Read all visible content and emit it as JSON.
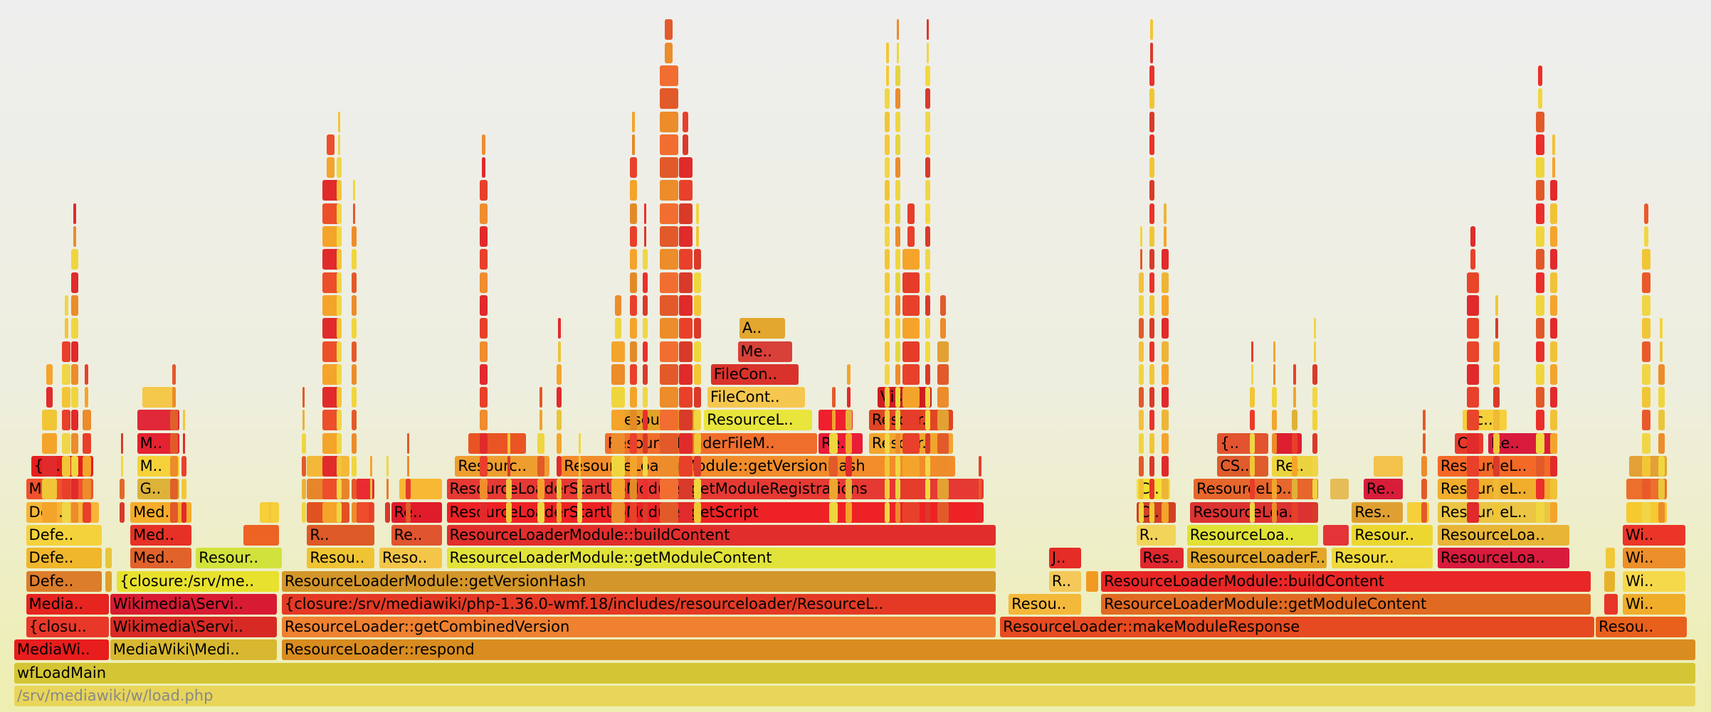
{
  "chart_data": {
    "type": "flamegraph",
    "title": "",
    "frames": [
      {
        "depth": 0,
        "x0": 0,
        "x1": 100,
        "label": "/srv/mediawiki/w/load.php",
        "color": "#e8d55a"
      },
      {
        "depth": 1,
        "x0": 0,
        "x1": 100,
        "label": "wfLoadMain",
        "color": "#d4c534"
      },
      {
        "depth": 2,
        "x0": 0,
        "x1": 5.7,
        "label": "MediaWi..",
        "color": "#e81d1d"
      },
      {
        "depth": 2,
        "x0": 5.7,
        "x1": 15.7,
        "label": "MediaWiki\\Medi..",
        "color": "#d8b830"
      },
      {
        "depth": 2,
        "x0": 15.9,
        "x1": 100,
        "label": "ResourceLoader::respond",
        "color": "#d98c1f"
      },
      {
        "depth": 3,
        "x0": 0.7,
        "x1": 5.7,
        "label": "{closu..",
        "color": "#e8382a"
      },
      {
        "depth": 3,
        "x0": 5.7,
        "x1": 15.7,
        "label": "Wikimedia\\Servi..",
        "color": "#d82a24"
      },
      {
        "depth": 3,
        "x0": 15.9,
        "x1": 58.4,
        "label": "ResourceLoader::getCombinedVersion",
        "color": "#ef8130"
      },
      {
        "depth": 3,
        "x0": 58.6,
        "x1": 94.0,
        "label": "ResourceLoader::makeModuleResponse",
        "color": "#e64a20"
      },
      {
        "depth": 3,
        "x0": 94.0,
        "x1": 99.5,
        "label": "Resou..",
        "color": "#e8601c"
      },
      {
        "depth": 4,
        "x0": 0.7,
        "x1": 5.7,
        "label": "Media..",
        "color": "#e62420"
      },
      {
        "depth": 4,
        "x0": 5.7,
        "x1": 15.7,
        "label": "Wikimedia\\Servi..",
        "color": "#d81b32"
      },
      {
        "depth": 4,
        "x0": 15.9,
        "x1": 58.4,
        "label": "{closure:/srv/mediawiki/php-1.36.0-wmf.18/includes/resourceloader/ResourceL..",
        "color": "#e43a25"
      },
      {
        "depth": 4,
        "x0": 59.1,
        "x1": 63.5,
        "label": "Resou..",
        "color": "#f4b83a"
      },
      {
        "depth": 4,
        "x0": 64.6,
        "x1": 93.8,
        "label": "ResourceLoaderModule::getModuleContent",
        "color": "#e06a22"
      },
      {
        "depth": 4,
        "x0": 94.5,
        "x1": 95.4,
        "label": "",
        "color": "#e8352a"
      },
      {
        "depth": 4,
        "x0": 95.6,
        "x1": 99.4,
        "label": "Wi..",
        "color": "#f0ad2a"
      },
      {
        "depth": 5,
        "x0": 0.7,
        "x1": 5.3,
        "label": "Defe..",
        "color": "#dc7d2b"
      },
      {
        "depth": 5,
        "x0": 5.4,
        "x1": 5.9,
        "label": "",
        "color": "#e0a02c"
      },
      {
        "depth": 5,
        "x0": 6.1,
        "x1": 15.8,
        "label": "{closure:/srv/me..",
        "color": "#e8e12d"
      },
      {
        "depth": 5,
        "x0": 15.9,
        "x1": 58.4,
        "label": "ResourceLoaderModule::getVersionHash",
        "color": "#d3962a"
      },
      {
        "depth": 5,
        "x0": 61.5,
        "x1": 63.5,
        "label": "R..",
        "color": "#f4c95a"
      },
      {
        "depth": 5,
        "x0": 63.7,
        "x1": 64.5,
        "label": "",
        "color": "#f19a22"
      },
      {
        "depth": 5,
        "x0": 64.6,
        "x1": 93.8,
        "label": "ResourceLoaderModule::buildContent",
        "color": "#e82726"
      },
      {
        "depth": 5,
        "x0": 94.5,
        "x1": 95.2,
        "label": "",
        "color": "#e7b22b"
      },
      {
        "depth": 5,
        "x0": 95.6,
        "x1": 99.4,
        "label": "Wi..",
        "color": "#f6d94a"
      },
      {
        "depth": 6,
        "x0": 0.7,
        "x1": 5.3,
        "label": "Defe..",
        "color": "#f0b62c"
      },
      {
        "depth": 6,
        "x0": 5.4,
        "x1": 5.9,
        "label": "",
        "color": "#e8c53a"
      },
      {
        "depth": 6,
        "x0": 6.9,
        "x1": 10.6,
        "label": "Med..",
        "color": "#e1622b"
      },
      {
        "depth": 6,
        "x0": 10.8,
        "x1": 16.0,
        "label": "Resour..",
        "color": "#d2e23c"
      },
      {
        "depth": 6,
        "x0": 17.4,
        "x1": 21.5,
        "label": "Resou..",
        "color": "#efc434"
      },
      {
        "depth": 6,
        "x0": 21.7,
        "x1": 25.5,
        "label": "Reso..",
        "color": "#f3c64a"
      },
      {
        "depth": 6,
        "x0": 25.7,
        "x1": 58.4,
        "label": "ResourceLoaderModule::getModuleContent",
        "color": "#e2e33a"
      },
      {
        "depth": 6,
        "x0": 61.5,
        "x1": 63.5,
        "label": "J..",
        "color": "#e52c26"
      },
      {
        "depth": 6,
        "x0": 66.9,
        "x1": 69.6,
        "label": "Res..",
        "color": "#e0272e"
      },
      {
        "depth": 6,
        "x0": 69.7,
        "x1": 78.1,
        "label": "ResourceLoaderF..",
        "color": "#e3a628"
      },
      {
        "depth": 6,
        "x0": 78.3,
        "x1": 84.4,
        "label": "Resour..",
        "color": "#efd83a"
      },
      {
        "depth": 6,
        "x0": 84.6,
        "x1": 92.5,
        "label": "ResourceLoa..",
        "color": "#d81b3d"
      },
      {
        "depth": 6,
        "x0": 94.6,
        "x1": 95.2,
        "label": "",
        "color": "#f0c83a"
      },
      {
        "depth": 6,
        "x0": 95.6,
        "x1": 99.4,
        "label": "Wi..",
        "color": "#ec8f2a"
      },
      {
        "depth": 7,
        "x0": 0.7,
        "x1": 5.3,
        "label": "Defe..",
        "color": "#f4d23c"
      },
      {
        "depth": 7,
        "x0": 6.9,
        "x1": 10.6,
        "label": "Med..",
        "color": "#e63127"
      },
      {
        "depth": 7,
        "x0": 13.6,
        "x1": 15.8,
        "label": "",
        "color": "#ec6324"
      },
      {
        "depth": 7,
        "x0": 17.4,
        "x1": 21.5,
        "label": "R..",
        "color": "#dd5a27"
      },
      {
        "depth": 7,
        "x0": 22.4,
        "x1": 25.5,
        "label": "Re..",
        "color": "#e0542f"
      },
      {
        "depth": 7,
        "x0": 25.7,
        "x1": 58.4,
        "label": "ResourceLoaderModule::buildContent",
        "color": "#e12e2c"
      },
      {
        "depth": 7,
        "x0": 66.7,
        "x1": 69.1,
        "label": "R..",
        "color": "#f3d45a"
      },
      {
        "depth": 7,
        "x0": 69.7,
        "x1": 77.6,
        "label": "ResourceLoa..",
        "color": "#e1e235"
      },
      {
        "depth": 7,
        "x0": 77.8,
        "x1": 79.4,
        "label": "",
        "color": "#e43437"
      },
      {
        "depth": 7,
        "x0": 79.5,
        "x1": 84.4,
        "label": "Resour..",
        "color": "#ebd72f"
      },
      {
        "depth": 7,
        "x0": 84.6,
        "x1": 92.5,
        "label": "ResourceLoa..",
        "color": "#e8b536"
      },
      {
        "depth": 7,
        "x0": 95.6,
        "x1": 99.4,
        "label": "Wi..",
        "color": "#ec3529"
      },
      {
        "depth": 8,
        "x0": 0.7,
        "x1": 5.1,
        "label": "Def..",
        "color": "#f7b536"
      },
      {
        "depth": 8,
        "x0": 6.9,
        "x1": 10.6,
        "label": "Med..",
        "color": "#f5ad2a"
      },
      {
        "depth": 8,
        "x0": 14.6,
        "x1": 15.8,
        "label": "",
        "color": "#f6cf3a"
      },
      {
        "depth": 8,
        "x0": 17.4,
        "x1": 20.0,
        "label": "",
        "color": "#e25220"
      },
      {
        "depth": 8,
        "x0": 20.3,
        "x1": 21.5,
        "label": "",
        "color": "#ee4c2d"
      },
      {
        "depth": 8,
        "x0": 22.4,
        "x1": 25.5,
        "label": "Re..",
        "color": "#e01c2b"
      },
      {
        "depth": 8,
        "x0": 25.7,
        "x1": 57.7,
        "label": "ResourceLoaderStartUpModule::getScript",
        "color": "#ee2225"
      },
      {
        "depth": 8,
        "x0": 66.7,
        "x1": 69.1,
        "label": "C..",
        "color": "#d24024"
      },
      {
        "depth": 8,
        "x0": 69.9,
        "x1": 77.6,
        "label": "ResourceLoa..",
        "color": "#dc3332"
      },
      {
        "depth": 8,
        "x0": 79.5,
        "x1": 82.6,
        "label": "Res..",
        "color": "#e0a031"
      },
      {
        "depth": 8,
        "x0": 82.8,
        "x1": 84.2,
        "label": "",
        "color": "#f6d03a"
      },
      {
        "depth": 8,
        "x0": 84.6,
        "x1": 91.8,
        "label": "ResourceL..",
        "color": "#ebc543"
      },
      {
        "depth": 8,
        "x0": 95.8,
        "x1": 98.3,
        "label": "",
        "color": "#f6c92f"
      },
      {
        "depth": 9,
        "x0": 0.7,
        "x1": 4.8,
        "label": "M..",
        "color": "#f1512d"
      },
      {
        "depth": 9,
        "x0": 7.3,
        "x1": 9.9,
        "label": "G..",
        "color": "#dcb338"
      },
      {
        "depth": 9,
        "x0": 17.4,
        "x1": 20.0,
        "label": "",
        "color": "#e7852b"
      },
      {
        "depth": 9,
        "x0": 20.3,
        "x1": 21.5,
        "label": "",
        "color": "#ec2a32"
      },
      {
        "depth": 9,
        "x0": 22.9,
        "x1": 25.5,
        "label": "",
        "color": "#f7b833"
      },
      {
        "depth": 9,
        "x0": 25.7,
        "x1": 57.7,
        "label": "ResourceLoaderStartUpModule::getModuleRegistrations",
        "color": "#e63933"
      },
      {
        "depth": 9,
        "x0": 66.7,
        "x1": 68.8,
        "label": "C..",
        "color": "#f3e134"
      },
      {
        "depth": 9,
        "x0": 70.1,
        "x1": 77.6,
        "label": "ResourceLo..",
        "color": "#e7662c"
      },
      {
        "depth": 9,
        "x0": 78.2,
        "x1": 79.4,
        "label": "",
        "color": "#e6bc56"
      },
      {
        "depth": 9,
        "x0": 80.2,
        "x1": 82.6,
        "label": "Re..",
        "color": "#d81d3a"
      },
      {
        "depth": 9,
        "x0": 84.6,
        "x1": 91.8,
        "label": "ResourceL..",
        "color": "#f0ae2c"
      },
      {
        "depth": 9,
        "x0": 95.8,
        "x1": 98.3,
        "label": "",
        "color": "#ec6f2c"
      },
      {
        "depth": 10,
        "x0": 1.0,
        "x1": 4.8,
        "label": "{cl..",
        "color": "#e41f1d"
      },
      {
        "depth": 10,
        "x0": 7.3,
        "x1": 9.9,
        "label": "M..",
        "color": "#f6d23a"
      },
      {
        "depth": 10,
        "x0": 17.4,
        "x1": 20.0,
        "label": "",
        "color": "#f3b838"
      },
      {
        "depth": 10,
        "x0": 26.2,
        "x1": 31.9,
        "label": "Resourc..",
        "color": "#ee9e2f"
      },
      {
        "depth": 10,
        "x0": 32.5,
        "x1": 56.0,
        "label": "ResourceLoaderModule::getVersionHash",
        "color": "#f28c2a"
      },
      {
        "depth": 10,
        "x0": 71.5,
        "x1": 74.6,
        "label": "CS..",
        "color": "#df5c2c"
      },
      {
        "depth": 10,
        "x0": 74.8,
        "x1": 77.6,
        "label": "Re..",
        "color": "#ebd33f"
      },
      {
        "depth": 10,
        "x0": 80.8,
        "x1": 82.6,
        "label": "",
        "color": "#f3c24a"
      },
      {
        "depth": 10,
        "x0": 84.6,
        "x1": 91.8,
        "label": "ResourceL..",
        "color": "#f56927"
      },
      {
        "depth": 10,
        "x0": 96.0,
        "x1": 98.3,
        "label": "",
        "color": "#e3a036"
      },
      {
        "depth": 11,
        "x0": 7.3,
        "x1": 9.9,
        "label": "M..",
        "color": "#e42231"
      },
      {
        "depth": 11,
        "x0": 27.0,
        "x1": 30.5,
        "label": "",
        "color": "#ea5424"
      },
      {
        "depth": 11,
        "x0": 35.1,
        "x1": 47.8,
        "label": "ResourceLoaderFileM..",
        "color": "#f06e2c"
      },
      {
        "depth": 11,
        "x0": 47.8,
        "x1": 50.5,
        "label": "Re..",
        "color": "#ea1c37"
      },
      {
        "depth": 11,
        "x0": 50.8,
        "x1": 55.9,
        "label": "Resour..",
        "color": "#f2a52e"
      },
      {
        "depth": 11,
        "x0": 71.5,
        "x1": 74.6,
        "label": "{..",
        "color": "#e3532f"
      },
      {
        "depth": 11,
        "x0": 74.8,
        "x1": 76.6,
        "label": "",
        "color": "#dd1f30"
      },
      {
        "depth": 11,
        "x0": 85.6,
        "x1": 87.4,
        "label": "C..",
        "color": "#e83a2c"
      },
      {
        "depth": 11,
        "x0": 87.6,
        "x1": 91.8,
        "label": "Re..",
        "color": "#d81b3d"
      },
      {
        "depth": 12,
        "x0": 7.3,
        "x1": 9.9,
        "label": "",
        "color": "#e02838"
      },
      {
        "depth": 12,
        "x0": 35.5,
        "x1": 40.7,
        "label": "Resourc..",
        "color": "#e2a328"
      },
      {
        "depth": 12,
        "x0": 41.0,
        "x1": 47.5,
        "label": "ResourceL..",
        "color": "#e8e53c"
      },
      {
        "depth": 12,
        "x0": 47.8,
        "x1": 49.9,
        "label": "",
        "color": "#ef1f2d"
      },
      {
        "depth": 12,
        "x0": 50.8,
        "x1": 55.9,
        "label": "Resour..",
        "color": "#e14523"
      },
      {
        "depth": 12,
        "x0": 86.1,
        "x1": 88.8,
        "label": "{c..",
        "color": "#f5d03a"
      },
      {
        "depth": 13,
        "x0": 7.6,
        "x1": 9.7,
        "label": "",
        "color": "#f4c84a"
      },
      {
        "depth": 13,
        "x0": 41.2,
        "x1": 47.1,
        "label": "FileCont..",
        "color": "#f6c74f"
      },
      {
        "depth": 13,
        "x0": 51.3,
        "x1": 54.6,
        "label": "Vis..",
        "color": "#d01d21"
      },
      {
        "depth": 14,
        "x0": 41.4,
        "x1": 46.7,
        "label": "FileCon..",
        "color": "#d9322c"
      },
      {
        "depth": 15,
        "x0": 43.0,
        "x1": 46.3,
        "label": "Me..",
        "color": "#d8413a"
      },
      {
        "depth": 16,
        "x0": 43.1,
        "x1": 45.9,
        "label": "A..",
        "color": "#e3a62e"
      }
    ],
    "spikes": [
      {
        "x": 2.1,
        "top": 14,
        "color": "#f1c636",
        "w": 0.9
      },
      {
        "x": 3.1,
        "top": 17,
        "color": "#e8402a",
        "w": 0.5
      },
      {
        "x": 3.6,
        "top": 21,
        "color": "#e12a2b",
        "w": 0.4
      },
      {
        "x": 4.3,
        "top": 14,
        "color": "#ec8c2a",
        "w": 0.5
      },
      {
        "x": 6.4,
        "top": 11,
        "color": "#e06a2a",
        "w": 0.3
      },
      {
        "x": 9.5,
        "top": 14,
        "color": "#e0602a",
        "w": 0.5
      },
      {
        "x": 10.1,
        "top": 12,
        "color": "#f2c637",
        "w": 0.3
      },
      {
        "x": 15.2,
        "top": 8,
        "color": "#efd34a",
        "w": 0.3
      },
      {
        "x": 17.2,
        "top": 13,
        "color": "#e8b23a",
        "w": 0.2
      },
      {
        "x": 18.8,
        "top": 24,
        "color": "#ec4f2a",
        "w": 1.0
      },
      {
        "x": 19.3,
        "top": 25,
        "color": "#f0d646",
        "w": 0.3
      },
      {
        "x": 20.2,
        "top": 22,
        "color": "#e25a2a",
        "w": 0.3
      },
      {
        "x": 21.2,
        "top": 10,
        "color": "#d9c83a",
        "w": 0.2
      },
      {
        "x": 22.2,
        "top": 10,
        "color": "#ea7a2a",
        "w": 0.3
      },
      {
        "x": 23.4,
        "top": 11,
        "color": "#e83a2a",
        "w": 0.3
      },
      {
        "x": 27.9,
        "top": 24,
        "color": "#ef8d2f",
        "w": 0.5
      },
      {
        "x": 29.4,
        "top": 11,
        "color": "#f3c23e",
        "w": 0.3
      },
      {
        "x": 31.3,
        "top": 13,
        "color": "#f5a02c",
        "w": 0.4
      },
      {
        "x": 32.4,
        "top": 16,
        "color": "#e9c43a",
        "w": 0.3
      },
      {
        "x": 33.6,
        "top": 11,
        "color": "#e8af2f",
        "w": 0.3
      },
      {
        "x": 35.9,
        "top": 17,
        "color": "#f4a42a",
        "w": 0.8
      },
      {
        "x": 36.8,
        "top": 25,
        "color": "#e38a28",
        "w": 0.4
      },
      {
        "x": 37.5,
        "top": 21,
        "color": "#eb2f2a",
        "w": 0.3
      },
      {
        "x": 38.9,
        "top": 29,
        "color": "#f26e30",
        "w": 1.1
      },
      {
        "x": 39.9,
        "top": 25,
        "color": "#d93a2a",
        "w": 0.8
      },
      {
        "x": 40.6,
        "top": 21,
        "color": "#efd63e",
        "w": 0.4
      },
      {
        "x": 48.7,
        "top": 13,
        "color": "#f0a52e",
        "w": 0.5
      },
      {
        "x": 49.6,
        "top": 14,
        "color": "#e3b236",
        "w": 0.4
      },
      {
        "x": 51.9,
        "top": 28,
        "color": "#f4c93a",
        "w": 0.3
      },
      {
        "x": 52.5,
        "top": 29,
        "color": "#e5d43c",
        "w": 0.3
      },
      {
        "x": 53.3,
        "top": 21,
        "color": "#e63c2a",
        "w": 1.0
      },
      {
        "x": 54.3,
        "top": 29,
        "color": "#f3d93a",
        "w": 0.3
      },
      {
        "x": 55.2,
        "top": 17,
        "color": "#e2a132",
        "w": 0.7
      },
      {
        "x": 57.4,
        "top": 10,
        "color": "#e85a2c",
        "w": 0.3
      },
      {
        "x": 67.6,
        "top": 29,
        "color": "#e9332a",
        "w": 0.3
      },
      {
        "x": 67.0,
        "top": 20,
        "color": "#f3c13a",
        "w": 0.3
      },
      {
        "x": 68.4,
        "top": 21,
        "color": "#edb536",
        "w": 0.4
      },
      {
        "x": 73.6,
        "top": 15,
        "color": "#e93c2a",
        "w": 0.3
      },
      {
        "x": 74.9,
        "top": 15,
        "color": "#f2a62c",
        "w": 0.3
      },
      {
        "x": 76.1,
        "top": 14,
        "color": "#e0b136",
        "w": 0.3
      },
      {
        "x": 77.3,
        "top": 16,
        "color": "#f0d23c",
        "w": 0.3
      },
      {
        "x": 83.8,
        "top": 12,
        "color": "#e35a29",
        "w": 0.3
      },
      {
        "x": 86.7,
        "top": 20,
        "color": "#e9452a",
        "w": 0.7
      },
      {
        "x": 88.1,
        "top": 17,
        "color": "#f0b936",
        "w": 0.4
      },
      {
        "x": 90.7,
        "top": 27,
        "color": "#eb2f2b",
        "w": 0.5
      },
      {
        "x": 91.5,
        "top": 24,
        "color": "#f0c236",
        "w": 0.4
      },
      {
        "x": 97.0,
        "top": 21,
        "color": "#e95a2b",
        "w": 0.5
      },
      {
        "x": 97.9,
        "top": 16,
        "color": "#e9c63a",
        "w": 0.4
      }
    ]
  }
}
